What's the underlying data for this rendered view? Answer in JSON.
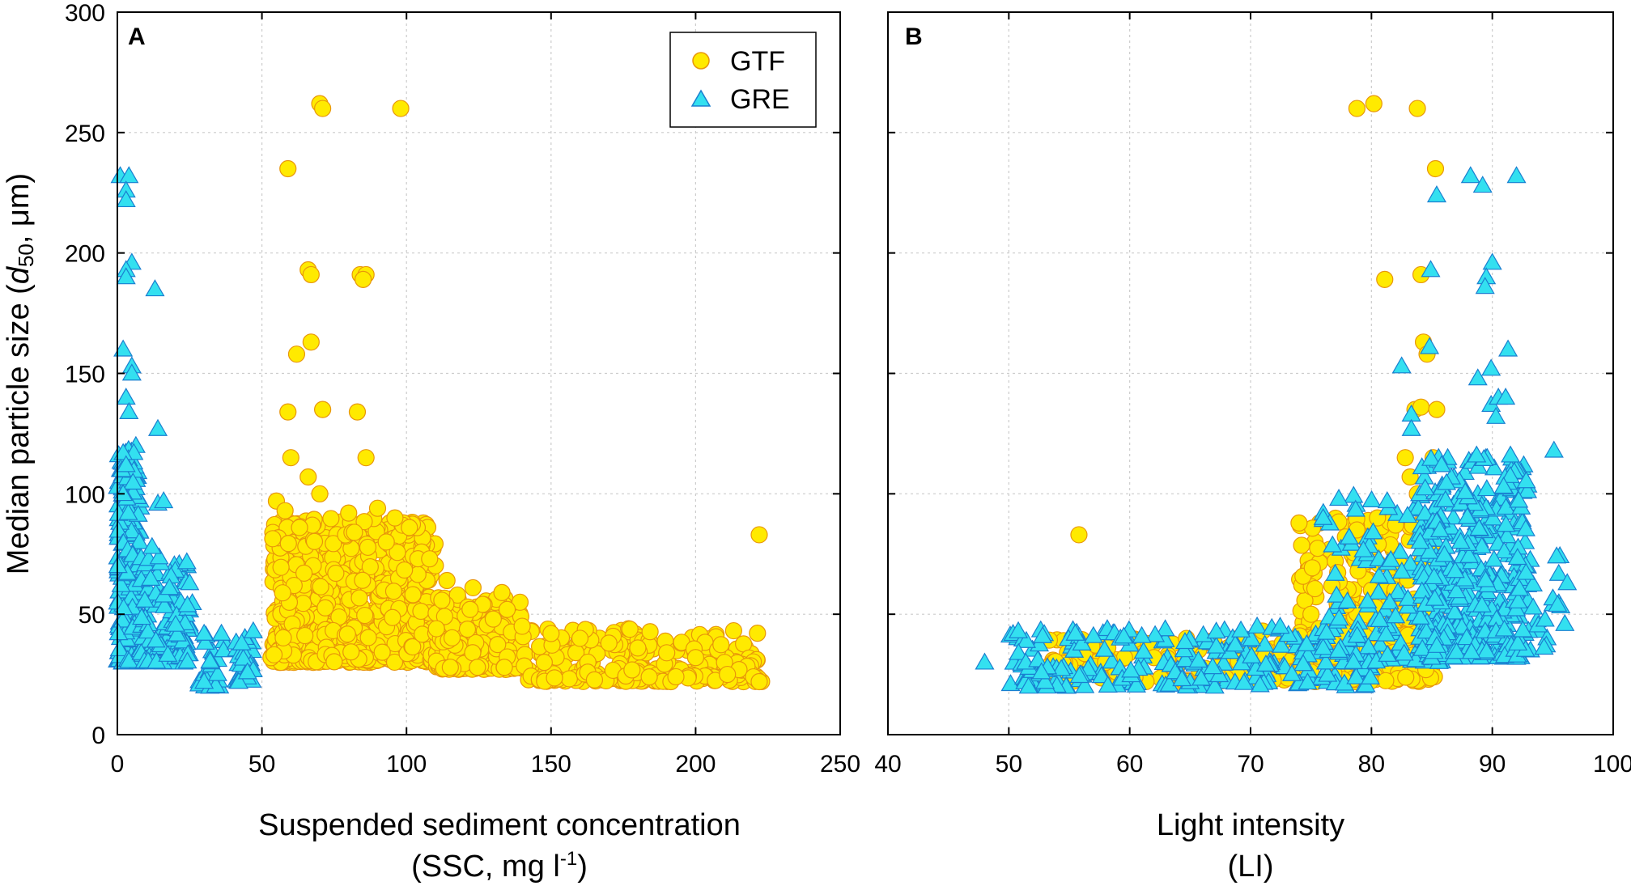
{
  "chart_data": [
    {
      "type": "scatter",
      "panel_label": "A",
      "xlabel_line1": "Suspended sediment concentration",
      "xlabel_line2_prefix": "(SSC, mg l",
      "xlabel_line2_sup": "-1",
      "xlabel_line2_suffix": ")",
      "ylabel_prefix": "Median particle size  (",
      "ylabel_italic": "d",
      "ylabel_sub": "50",
      "ylabel_suffix": ", μm)",
      "xlim": [
        0,
        250
      ],
      "ylim": [
        0,
        300
      ],
      "xticks": [
        0,
        50,
        100,
        150,
        200,
        250
      ],
      "yticks": [
        0,
        50,
        100,
        150,
        200,
        250,
        300
      ],
      "grid": true,
      "legend": {
        "position": "top-right",
        "entries": [
          {
            "name": "GTF",
            "marker": "circle",
            "color": "#FFEA00",
            "edge": "#E8960A"
          },
          {
            "name": "GRE",
            "marker": "triangle",
            "color": "#33E0F0",
            "edge": "#1A7FD0"
          }
        ]
      },
      "series": [
        {
          "name": "GTF",
          "points": [
            [
              70,
              262
            ],
            [
              71,
              260
            ],
            [
              98,
              260
            ],
            [
              59,
              235
            ],
            [
              66,
              193
            ],
            [
              67,
              191
            ],
            [
              84,
              191
            ],
            [
              86,
              191
            ],
            [
              85,
              189
            ],
            [
              67,
              163
            ],
            [
              62,
              158
            ],
            [
              71,
              135
            ],
            [
              59,
              134
            ],
            [
              83,
              134
            ],
            [
              60,
              115
            ],
            [
              86,
              115
            ],
            [
              66,
              107
            ],
            [
              70,
              100
            ],
            [
              55,
              97
            ],
            [
              58,
              93
            ],
            [
              80,
              92
            ],
            [
              90,
              94
            ],
            [
              96,
              90
            ],
            [
              101,
              86
            ],
            [
              63,
              86
            ],
            [
              222,
              83
            ],
            [
              82,
              84
            ],
            [
              93,
              80
            ],
            [
              108,
              73
            ],
            [
              114,
              64
            ],
            [
              123,
              61
            ],
            [
              133,
              59
            ],
            [
              122,
              52
            ],
            [
              130,
              48
            ],
            [
              140,
              45
            ],
            [
              150,
              42
            ],
            [
              160,
              40
            ],
            [
              170,
              38
            ],
            [
              180,
              36
            ],
            [
              190,
              34
            ],
            [
              200,
              32
            ],
            [
              210,
              30
            ],
            [
              215,
              27
            ],
            [
              220,
              24
            ],
            [
              222,
              22
            ],
            [
              211,
              25
            ]
          ],
          "cluster": [
            {
              "x_range": [
                53,
                110
              ],
              "y_range": [
                30,
                90
              ],
              "n": 750
            },
            {
              "x_range": [
                110,
                140
              ],
              "y_range": [
                27,
                58
              ],
              "n": 200
            },
            {
              "x_range": [
                140,
                223
              ],
              "y_range": [
                22,
                44
              ],
              "n": 260
            }
          ]
        },
        {
          "name": "GRE",
          "points": [
            [
              1,
              232
            ],
            [
              4,
              232
            ],
            [
              3,
              226
            ],
            [
              3,
              222
            ],
            [
              5,
              196
            ],
            [
              3,
              193
            ],
            [
              3,
              190
            ],
            [
              13,
              185
            ],
            [
              2,
              160
            ],
            [
              5,
              153
            ],
            [
              5,
              150
            ],
            [
              3,
              140
            ],
            [
              4,
              134
            ],
            [
              14,
              127
            ],
            [
              2,
              117
            ],
            [
              3,
              112
            ],
            [
              14,
              96
            ],
            [
              16,
              97
            ],
            [
              2,
              100
            ],
            [
              12,
              78
            ],
            [
              18,
              61
            ],
            [
              25,
              63
            ],
            [
              30,
              42
            ],
            [
              36,
              42
            ],
            [
              43,
              38
            ],
            [
              47,
              43
            ],
            [
              30,
              22
            ],
            [
              42,
              22
            ],
            [
              45,
              26
            ]
          ],
          "cluster": [
            {
              "x_range": [
                0,
                8
              ],
              "y_range": [
                30,
                120
              ],
              "n": 250
            },
            {
              "x_range": [
                8,
                26
              ],
              "y_range": [
                30,
                75
              ],
              "n": 130
            },
            {
              "x_range": [
                28,
                37
              ],
              "y_range": [
                20,
                42
              ],
              "n": 30
            },
            {
              "x_range": [
                41,
                47
              ],
              "y_range": [
                22,
                43
              ],
              "n": 30
            }
          ]
        }
      ]
    },
    {
      "type": "scatter",
      "panel_label": "B",
      "xlabel_line1": "Light intensity",
      "xlabel_line2": "(LI)",
      "xlim": [
        40,
        100
      ],
      "ylim": [
        0,
        300
      ],
      "xticks": [
        40,
        50,
        60,
        70,
        80,
        90,
        100
      ],
      "yticks": [
        0,
        50,
        100,
        150,
        200,
        250,
        300
      ],
      "grid": true,
      "series": [
        {
          "name": "GTF",
          "points": [
            [
              78.8,
              260
            ],
            [
              80.2,
              262
            ],
            [
              83.8,
              260
            ],
            [
              85.3,
              235
            ],
            [
              81.1,
              189
            ],
            [
              84.1,
              191
            ],
            [
              84.3,
              163
            ],
            [
              84.6,
              158
            ],
            [
              83.6,
              135
            ],
            [
              84.1,
              136
            ],
            [
              85.4,
              135
            ],
            [
              85.1,
              115
            ],
            [
              82.8,
              115
            ],
            [
              83.2,
              107
            ],
            [
              83.8,
              100
            ],
            [
              55.8,
              83
            ],
            [
              78.8,
              85
            ],
            [
              80.5,
              90
            ],
            [
              82,
              87
            ],
            [
              84,
              80
            ],
            [
              78.9,
              68
            ],
            [
              80,
              60
            ],
            [
              78,
              54
            ],
            [
              75,
              50
            ],
            [
              71,
              43
            ],
            [
              69,
              40
            ],
            [
              67,
              38
            ],
            [
              65,
              37
            ],
            [
              62,
              32
            ],
            [
              58,
              30
            ],
            [
              54,
              24
            ],
            [
              56,
              23
            ],
            [
              79.5,
              26
            ],
            [
              84.5,
              27
            ]
          ],
          "cluster": [
            {
              "x_range": [
                53,
                86
              ],
              "y_range": [
                22,
                40
              ],
              "n": 260
            },
            {
              "x_range": [
                74,
                86
              ],
              "y_range": [
                40,
                90
              ],
              "n": 220
            }
          ]
        },
        {
          "name": "GRE",
          "points": [
            [
              88.2,
              232
            ],
            [
              89.2,
              228
            ],
            [
              92,
              232
            ],
            [
              85.4,
              224
            ],
            [
              84.9,
              193
            ],
            [
              90,
              196
            ],
            [
              89.5,
              190
            ],
            [
              89.4,
              186
            ],
            [
              91.3,
              160
            ],
            [
              84.8,
              161
            ],
            [
              82.5,
              153
            ],
            [
              89.9,
              152
            ],
            [
              88.8,
              148
            ],
            [
              89.9,
              137
            ],
            [
              90.5,
              140
            ],
            [
              91.1,
              140
            ],
            [
              83.3,
              133
            ],
            [
              90.3,
              132
            ],
            [
              83.3,
              127
            ],
            [
              88.7,
              116
            ],
            [
              95.1,
              118
            ],
            [
              91.5,
              116
            ],
            [
              85.8,
              112
            ],
            [
              81.3,
              97
            ],
            [
              48,
              30
            ],
            [
              50.8,
              34
            ],
            [
              51.4,
              30
            ],
            [
              52.4,
              31
            ],
            [
              53.2,
              28
            ],
            [
              53,
              22
            ],
            [
              52.7,
              26
            ],
            [
              55.5,
              42
            ],
            [
              57,
              41
            ],
            [
              61,
              41
            ],
            [
              96.2,
              63
            ],
            [
              96,
              46
            ],
            [
              95.4,
              54
            ]
          ],
          "cluster": [
            {
              "x_range": [
                50,
                80
              ],
              "y_range": [
                20,
                45
              ],
              "n": 220
            },
            {
              "x_range": [
                76,
                87
              ],
              "y_range": [
                30,
                100
              ],
              "n": 140
            },
            {
              "x_range": [
                84,
                93
              ],
              "y_range": [
                32,
                115
              ],
              "n": 420
            },
            {
              "x_range": [
                92,
                96
              ],
              "y_range": [
                35,
                75
              ],
              "n": 30
            }
          ]
        }
      ]
    }
  ]
}
